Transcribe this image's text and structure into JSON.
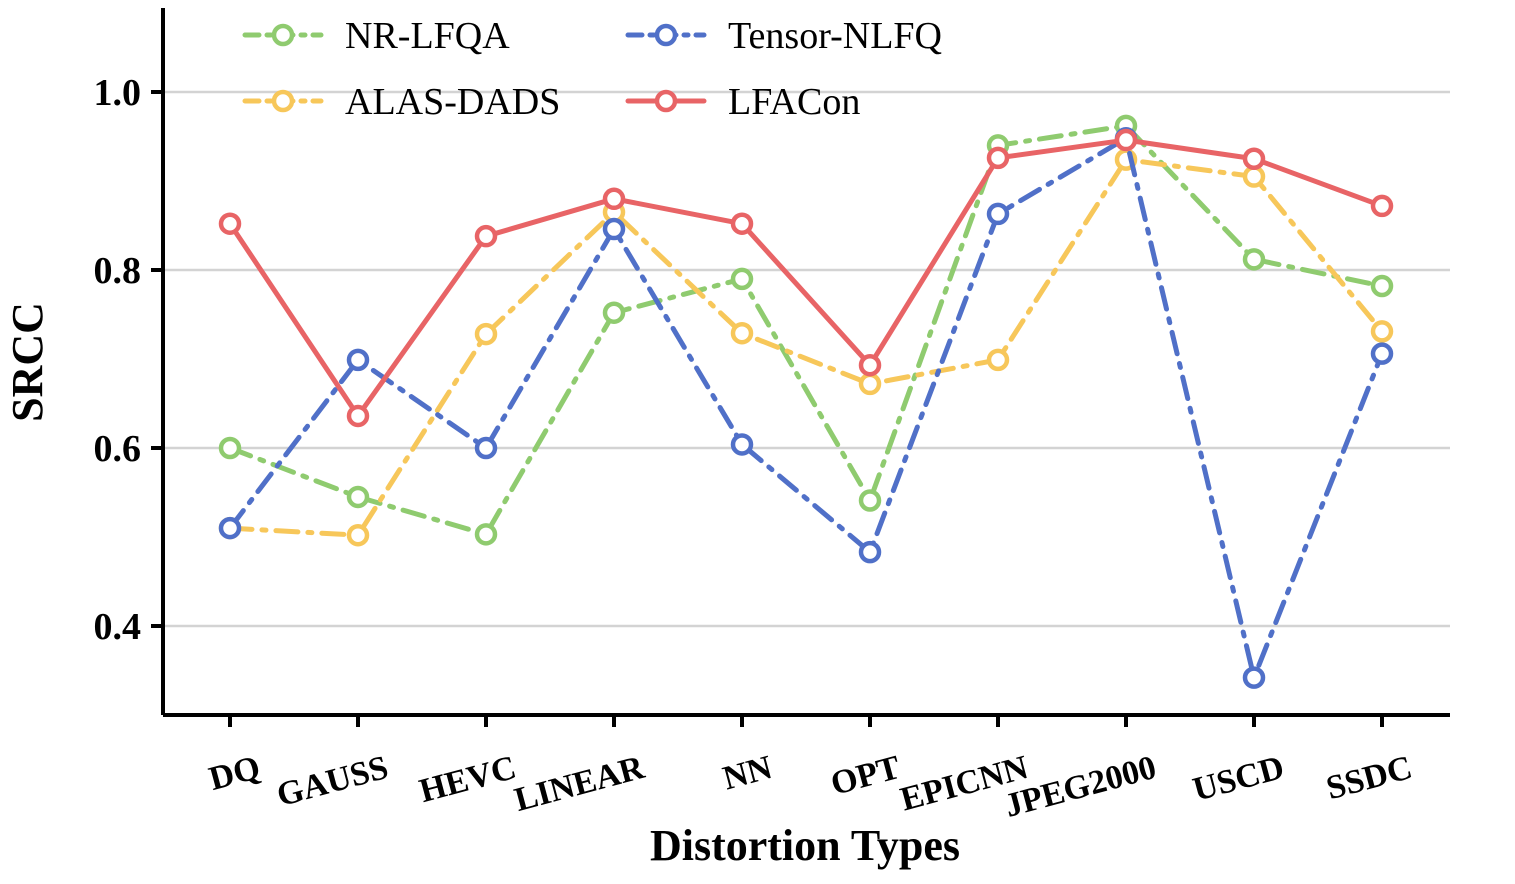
{
  "chart_data": {
    "type": "line",
    "title": "",
    "xlabel": "Distortion Types",
    "ylabel": "SRCC",
    "ylim": [
      0.3,
      1.08
    ],
    "yticks": [
      0.4,
      0.6,
      0.8,
      1.0
    ],
    "ytick_labels": [
      "0.4",
      "0.6",
      "0.8",
      "1.0"
    ],
    "grid": "horizontal",
    "legend_position": "top-left",
    "categories": [
      "DQ",
      "GAUSS",
      "HEVC",
      "LINEAR",
      "NN",
      "OPT",
      "EPICNN",
      "JPEG2000",
      "USCD",
      "SSDC"
    ],
    "series": [
      {
        "name": "NR-LFQA",
        "color": "#8fcb6f",
        "dash": "dashdot",
        "values": [
          0.6,
          0.545,
          0.503,
          0.752,
          0.79,
          0.541,
          0.94,
          0.962,
          0.812,
          0.782
        ]
      },
      {
        "name": "ALAS-DADS",
        "color": "#f7c75a",
        "dash": "dashdot",
        "values": [
          0.51,
          0.502,
          0.728,
          0.865,
          0.729,
          0.672,
          0.699,
          0.924,
          0.905,
          0.731
        ]
      },
      {
        "name": "Tensor-NLFQ",
        "color": "#5070c8",
        "dash": "dashdot",
        "values": [
          0.51,
          0.699,
          0.6,
          0.846,
          0.604,
          0.483,
          0.863,
          0.948,
          0.342,
          0.706
        ]
      },
      {
        "name": "LFACon",
        "color": "#e86466",
        "dash": "solid",
        "values": [
          0.852,
          0.636,
          0.838,
          0.88,
          0.852,
          0.693,
          0.926,
          0.946,
          0.925,
          0.872
        ]
      }
    ]
  }
}
